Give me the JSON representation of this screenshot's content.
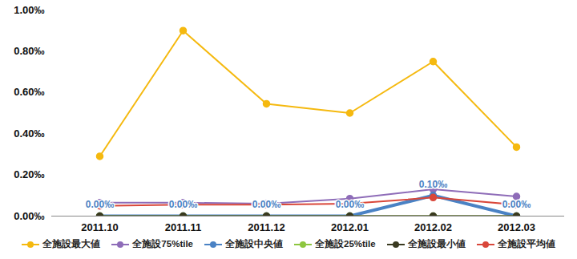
{
  "chart_data": {
    "type": "line",
    "categories": [
      "2011.10",
      "2011.11",
      "2011.12",
      "2012.01",
      "2012.02",
      "2012.03"
    ],
    "ylim": [
      0,
      1.0
    ],
    "yticks": [
      {
        "value": 0,
        "label": "0.00‰"
      },
      {
        "value": 0.2,
        "label": "0.20‰"
      },
      {
        "value": 0.4,
        "label": "0.40‰"
      },
      {
        "value": 0.6,
        "label": "0.60‰"
      },
      {
        "value": 0.8,
        "label": "0.80‰"
      },
      {
        "value": 1.0,
        "label": "1.00‰"
      }
    ],
    "grid": false,
    "legend": "bottom",
    "series": [
      {
        "name": "全施設最大値",
        "color": "#f5b90f",
        "marker": "circle",
        "line_style": "solid",
        "values": [
          0.29,
          0.9,
          0.545,
          0.5,
          0.75,
          0.335
        ]
      },
      {
        "name": "全施設75%tile",
        "color": "#8e6cb8",
        "marker": "circle",
        "line_style": "solid",
        "values": [
          0.065,
          0.065,
          0.06,
          0.085,
          0.13,
          0.095
        ]
      },
      {
        "name": "全施設中央値",
        "color": "#4a82c4",
        "marker": "circle",
        "line_style": "thick",
        "data_labels": true,
        "values": [
          0,
          0,
          0,
          0,
          0.1,
          0
        ],
        "value_labels": [
          "0.00‰",
          "0.00‰",
          "0.00‰",
          "0.00‰",
          "0.10‰",
          "0.00‰"
        ]
      },
      {
        "name": "全施設25%tile",
        "color": "#8dc63f",
        "marker": "circle",
        "line_style": "solid",
        "values": [
          0,
          0,
          0,
          0,
          0,
          0
        ]
      },
      {
        "name": "全施設最小値",
        "color": "#3a3a20",
        "marker": "circle",
        "line_style": "solid",
        "values": [
          0,
          0,
          0,
          0,
          0,
          0
        ]
      },
      {
        "name": "全施設平均値",
        "color": "#d9473a",
        "marker": "circle",
        "line_style": "solid",
        "values": [
          0.05,
          0.055,
          0.055,
          0.06,
          0.09,
          0.055
        ]
      }
    ]
  }
}
